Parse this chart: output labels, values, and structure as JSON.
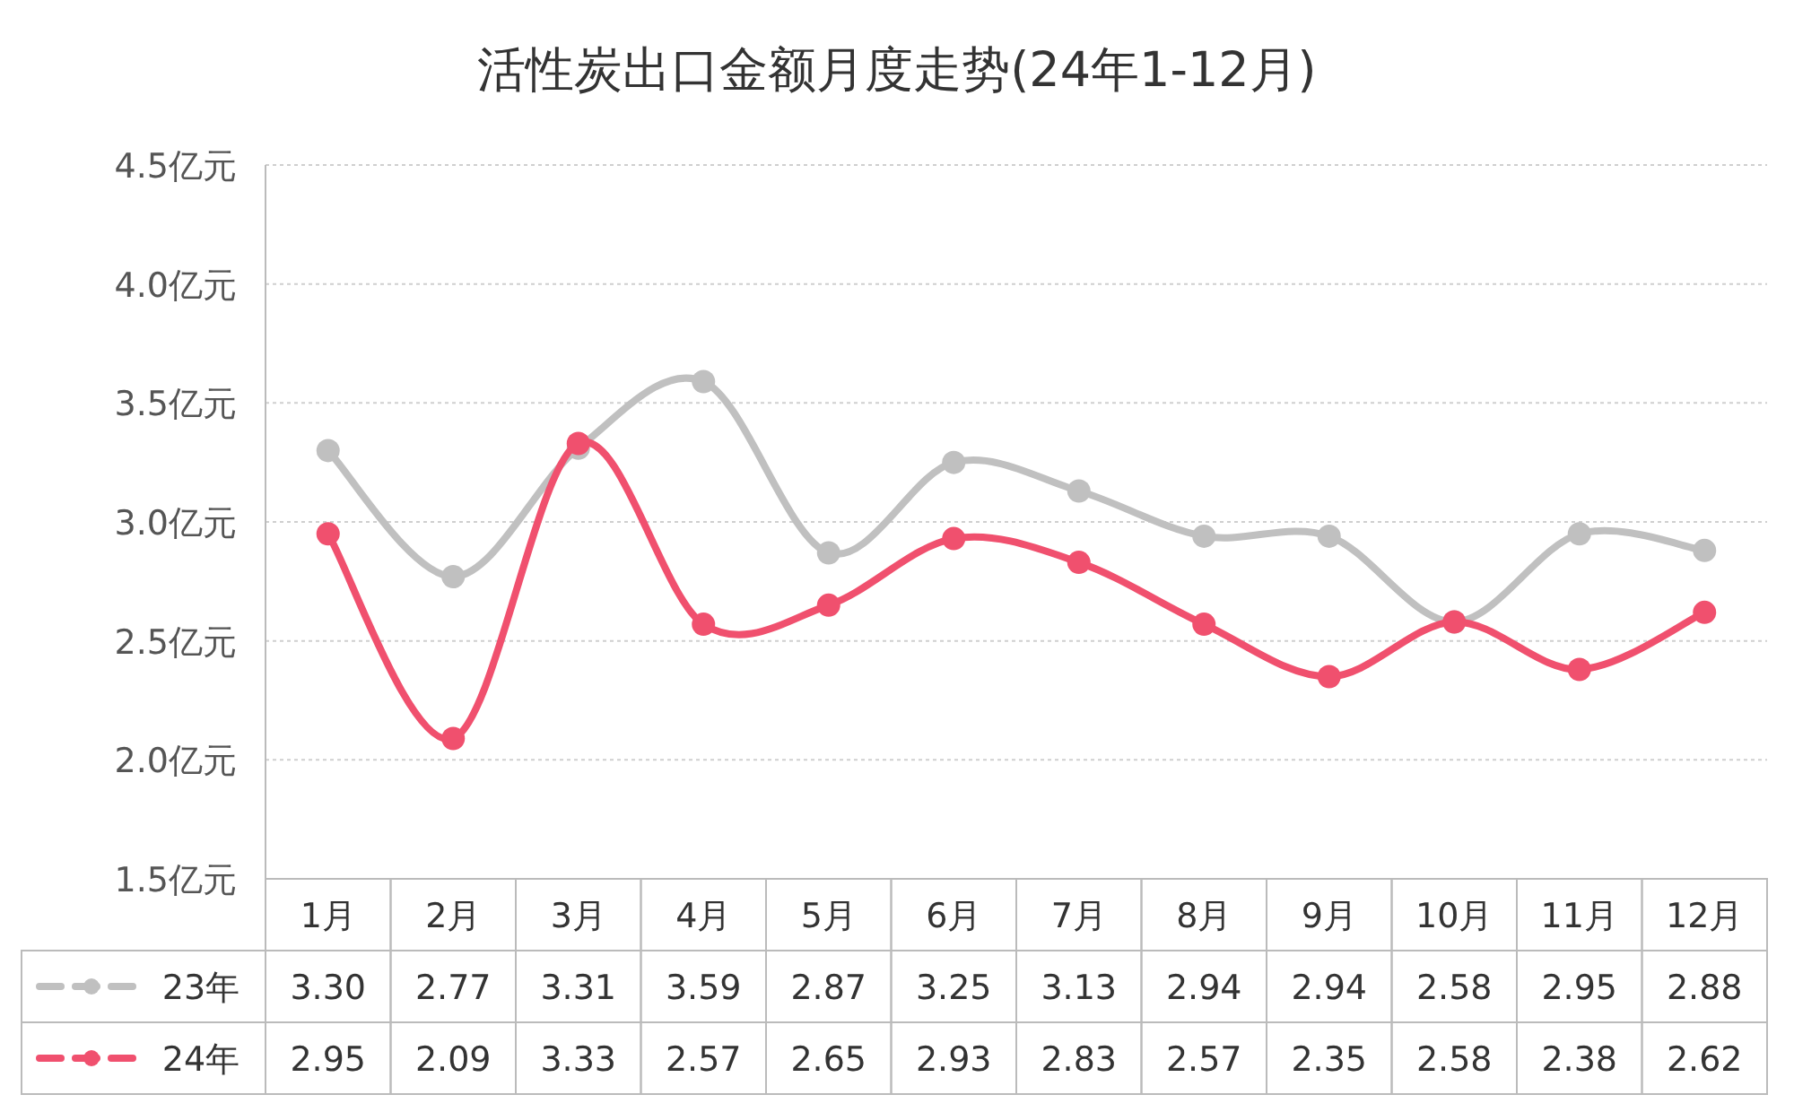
{
  "chart_data": {
    "type": "line",
    "title": "活性炭出口金额月度走势(24年1-12月)",
    "categories": [
      "1月",
      "2月",
      "3月",
      "4月",
      "5月",
      "6月",
      "7月",
      "8月",
      "9月",
      "10月",
      "11月",
      "12月"
    ],
    "series": [
      {
        "name": "23年",
        "color": "#c0c0c0",
        "values": [
          3.3,
          2.77,
          3.31,
          3.59,
          2.87,
          3.25,
          3.13,
          2.94,
          2.94,
          2.58,
          2.95,
          2.88
        ],
        "value_labels": [
          "3.30",
          "2.77",
          "3.31",
          "3.59",
          "2.87",
          "3.25",
          "3.13",
          "2.94",
          "2.94",
          "2.58",
          "2.95",
          "2.88"
        ]
      },
      {
        "name": "24年",
        "color": "#f0506e",
        "values": [
          2.95,
          2.09,
          3.33,
          2.57,
          2.65,
          2.93,
          2.83,
          2.57,
          2.35,
          2.58,
          2.38,
          2.62
        ],
        "value_labels": [
          "2.95",
          "2.09",
          "3.33",
          "2.57",
          "2.65",
          "2.93",
          "2.83",
          "2.57",
          "2.35",
          "2.58",
          "2.38",
          "2.62"
        ]
      }
    ],
    "ylim": [
      1.5,
      4.5
    ],
    "yticks": [
      {
        "value": 1.5,
        "label": "1.5亿元"
      },
      {
        "value": 2.0,
        "label": "2.0亿元"
      },
      {
        "value": 2.5,
        "label": "2.5亿元"
      },
      {
        "value": 3.0,
        "label": "3.0亿元"
      },
      {
        "value": 3.5,
        "label": "3.5亿元"
      },
      {
        "value": 4.0,
        "label": "4.0亿元"
      },
      {
        "value": 4.5,
        "label": "4.5亿元"
      }
    ],
    "grid": "y",
    "legend": "bottom left",
    "marker": "circle",
    "line_style": "solid"
  }
}
